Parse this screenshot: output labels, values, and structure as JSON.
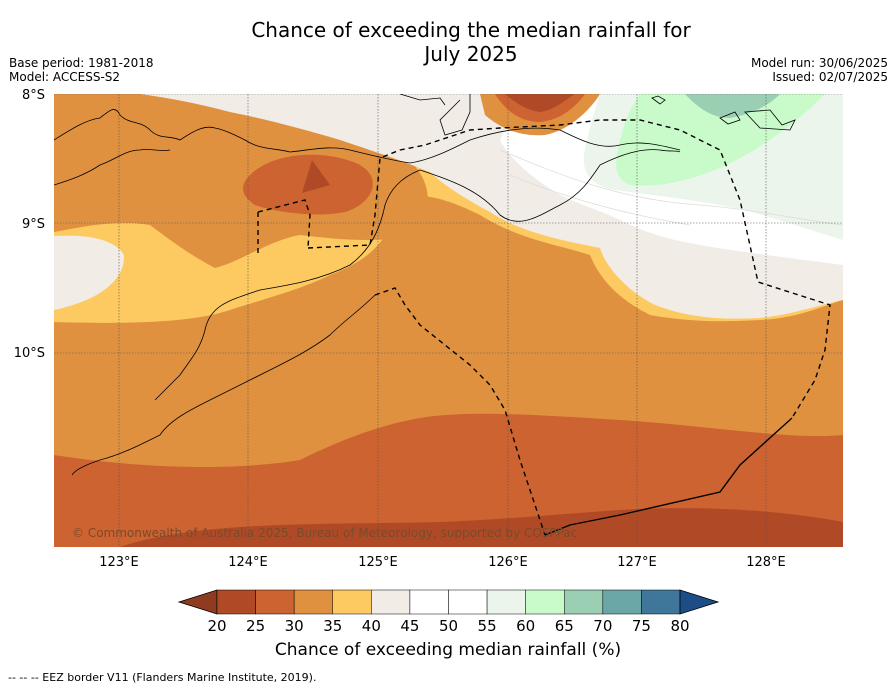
{
  "title_line1": "Chance of exceeding the median rainfall for",
  "title_line2": "July 2025",
  "base_period": "Base period: 1981-2018",
  "model": "Model: ACCESS-S2",
  "model_run": "Model run: 30/06/2025",
  "issued": "Issued: 02/07/2025",
  "lat_labels": [
    "8°S",
    "9°S",
    "10°S"
  ],
  "lon_labels": [
    "123°E",
    "124°E",
    "125°E",
    "126°E",
    "127°E",
    "128°E"
  ],
  "copyright": "© Commonwealth of Australia 2025, Bureau of Meteorology, supported by COSPPac",
  "colorbar": {
    "title": "Chance of exceeding median rainfall (%)",
    "ticks": [
      "20",
      "25",
      "30",
      "35",
      "40",
      "45",
      "50",
      "55",
      "60",
      "65",
      "70",
      "75",
      "80"
    ],
    "colors": [
      "#b04a26",
      "#cc6330",
      "#e09140",
      "#fdca62",
      "#f1ece6",
      "#ffffff",
      "#ffffff",
      "#ebf5eb",
      "#c9fac9",
      "#9bcfb4",
      "#6aa7a6",
      "#3f779b"
    ],
    "low_color": "#8f3b1f",
    "high_color": "#1d4d86"
  },
  "eez_note": "--  --  -- EEZ border V11 (Flanders Marine Institute, 2019)."
}
